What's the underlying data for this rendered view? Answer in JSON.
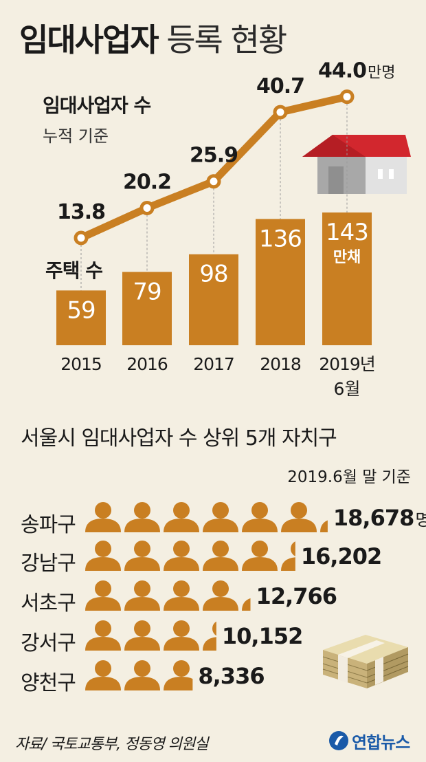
{
  "title": {
    "bold": "임대사업자",
    "light": "등록 현황"
  },
  "colors": {
    "accent": "#c97f22",
    "bar": "#c97f22",
    "background": "#f4efe2",
    "roof": "#d2272e",
    "house_wall": "#b9b9b9"
  },
  "chart_data": [
    {
      "type": "line",
      "title": "임대사업자 수",
      "subtitle": "누적 기준",
      "unit_label": "만명",
      "x": [
        "2015",
        "2016",
        "2017",
        "2018",
        "2019년"
      ],
      "x_sub": [
        "",
        "",
        "",
        "",
        "6월"
      ],
      "values": [
        13.8,
        20.2,
        25.9,
        40.7,
        44.0
      ],
      "value_labels": [
        "13.8",
        "20.2",
        "25.9",
        "40.7",
        "44.0"
      ]
    },
    {
      "type": "bar",
      "title": "주택 수",
      "unit_label": "만채",
      "categories": [
        "2015",
        "2016",
        "2017",
        "2018",
        "2019년"
      ],
      "values": [
        59,
        79,
        98,
        136,
        143
      ],
      "value_labels": [
        "59",
        "79",
        "98",
        "136",
        "143"
      ]
    },
    {
      "type": "bar",
      "title": "서울시 임대사업자 수 상위 5개 자치구",
      "subtitle": "2019.6월 말 기준",
      "unit_label": "명",
      "categories": [
        "송파구",
        "강남구",
        "서초구",
        "강서구",
        "양천구"
      ],
      "values": [
        18678,
        16202,
        12766,
        10152,
        8336
      ],
      "value_labels": [
        "18,678",
        "16,202",
        "12,766",
        "10,152",
        "8,336"
      ],
      "icon": "person-icon",
      "persons_per_icon": 3000
    }
  ],
  "footer": {
    "source": "자료/ 국토교통부, 정동영 의원실",
    "logo": "연합뉴스"
  }
}
